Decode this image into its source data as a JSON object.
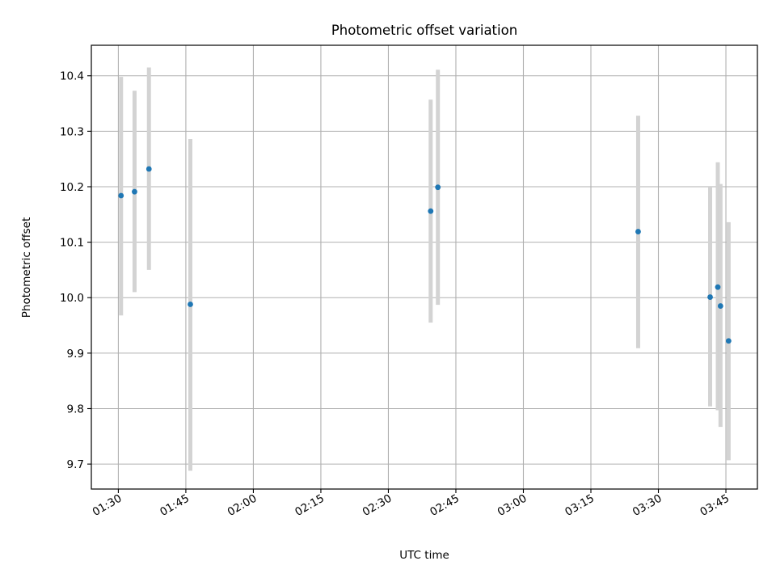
{
  "chart_data": {
    "type": "scatter",
    "title": "Photometric offset variation",
    "xlabel": "UTC time",
    "ylabel": "Photometric offset",
    "x_axis_type": "time",
    "xlim": [
      "01:24",
      "03:52"
    ],
    "ylim": [
      9.655,
      10.455
    ],
    "x_ticks": [
      "01:30",
      "01:45",
      "02:00",
      "02:15",
      "02:30",
      "02:45",
      "03:00",
      "03:15",
      "03:30",
      "03:45"
    ],
    "y_ticks": [
      9.7,
      9.8,
      9.9,
      10.0,
      10.1,
      10.2,
      10.3,
      10.4
    ],
    "grid": true,
    "legend": "none",
    "marker_color": "#1f77b4",
    "errorbar_color": "#d3d3d3",
    "points": [
      {
        "x": "01:30:36",
        "y": 10.184,
        "ylow": 9.968,
        "yhigh": 10.398
      },
      {
        "x": "01:33:36",
        "y": 10.191,
        "ylow": 10.01,
        "yhigh": 10.373
      },
      {
        "x": "01:36:48",
        "y": 10.232,
        "ylow": 10.05,
        "yhigh": 10.415
      },
      {
        "x": "01:46:00",
        "y": 9.988,
        "ylow": 9.688,
        "yhigh": 10.286
      },
      {
        "x": "02:39:24",
        "y": 10.156,
        "ylow": 9.955,
        "yhigh": 10.357
      },
      {
        "x": "02:41:00",
        "y": 10.199,
        "ylow": 9.987,
        "yhigh": 10.411
      },
      {
        "x": "03:25:30",
        "y": 10.119,
        "ylow": 9.909,
        "yhigh": 10.328
      },
      {
        "x": "03:41:30",
        "y": 10.001,
        "ylow": 9.804,
        "yhigh": 10.2
      },
      {
        "x": "03:43:12",
        "y": 10.019,
        "ylow": 9.797,
        "yhigh": 10.244
      },
      {
        "x": "03:43:48",
        "y": 9.985,
        "ylow": 9.767,
        "yhigh": 10.205
      },
      {
        "x": "03:45:36",
        "y": 9.922,
        "ylow": 9.707,
        "yhigh": 10.136
      }
    ]
  }
}
